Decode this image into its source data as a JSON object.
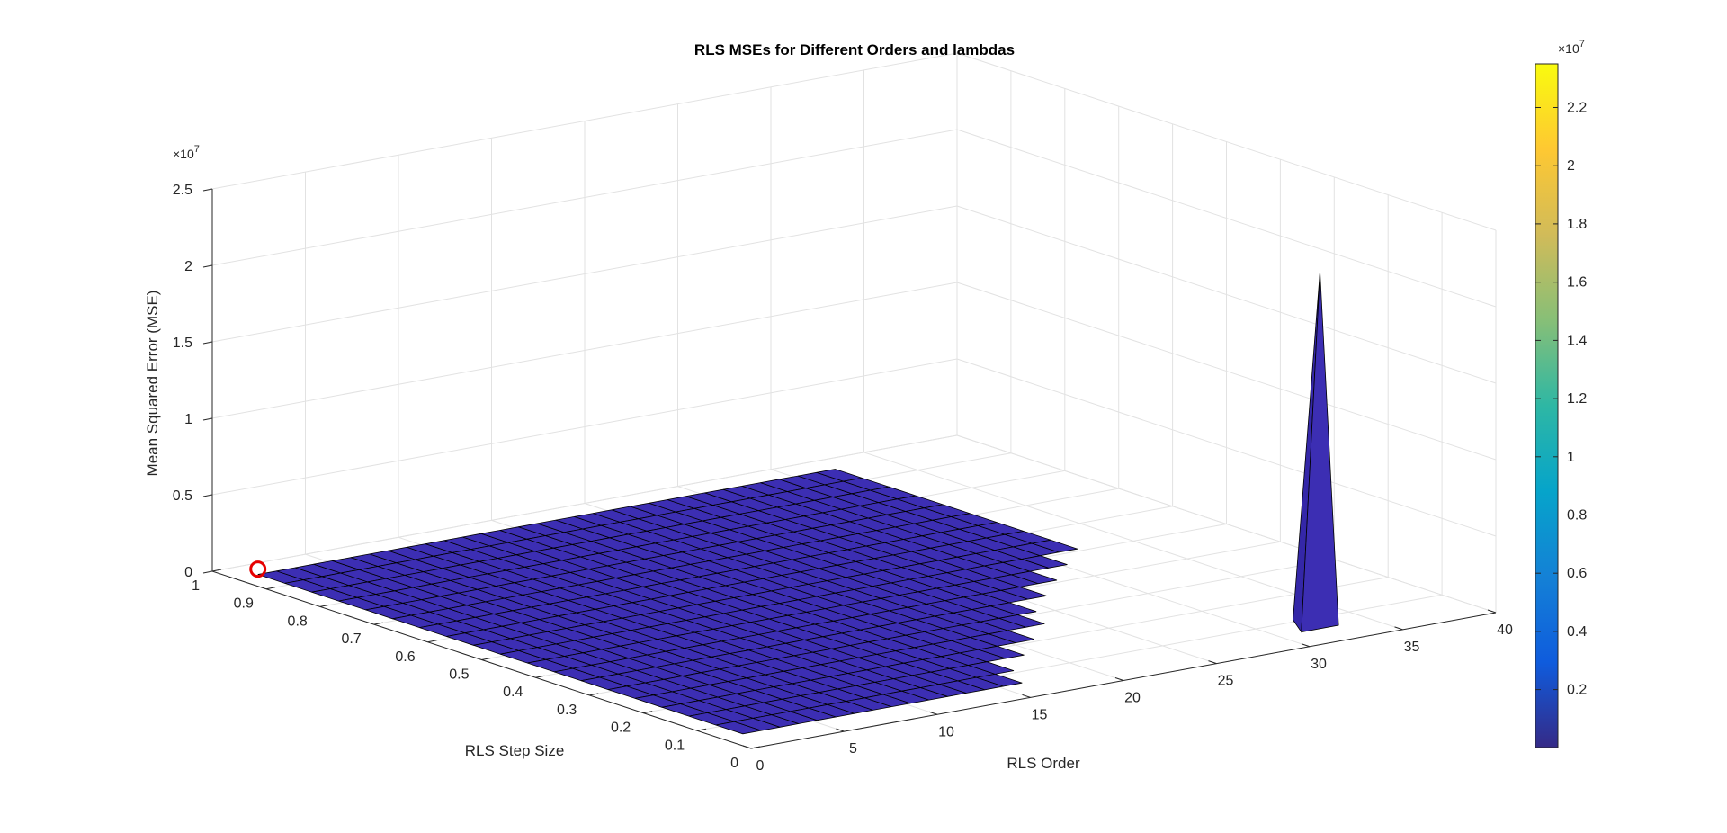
{
  "chart_data": {
    "type": "surface",
    "title": "RLS MSEs for Different Orders and lambdas",
    "xlabel": "RLS Order",
    "ylabel": "RLS Step Size",
    "zlabel": "Mean Squared Error (MSE)",
    "xlim": [
      0,
      40
    ],
    "ylim": [
      0,
      1
    ],
    "zlim": [
      0,
      25000000
    ],
    "x_ticks": [
      "0",
      "5",
      "10",
      "15",
      "20",
      "25",
      "30",
      "35",
      "40"
    ],
    "y_ticks": [
      "0",
      "0.1",
      "0.2",
      "0.3",
      "0.4",
      "0.5",
      "0.6",
      "0.7",
      "0.8",
      "0.9",
      "1"
    ],
    "z_ticks": [
      "0",
      "0.5",
      "1",
      "1.5",
      "2",
      "2.5"
    ],
    "z_exponent": "×10",
    "z_exponent_power": "7",
    "grid": true,
    "surface_color": "#3c2eb3",
    "edge_color": "#000000",
    "peak": {
      "order": 32,
      "step_size": 0.05,
      "mse": 23500000
    },
    "minimum_marker": {
      "order": 1,
      "step_size": 0.95,
      "mse": 500000,
      "color": "#e60000"
    },
    "colorbar": {
      "ticks": [
        "0.2",
        "0.4",
        "0.6",
        "0.8",
        "1",
        "1.2",
        "1.4",
        "1.6",
        "1.8",
        "2",
        "2.2"
      ],
      "tick_values": [
        0.2,
        0.4,
        0.6,
        0.8,
        1.0,
        1.2,
        1.4,
        1.6,
        1.8,
        2.0,
        2.2
      ],
      "min": 0.001,
      "max": 2.35,
      "exponent": "×10",
      "exponent_power": "7",
      "colormap": "parula"
    }
  }
}
